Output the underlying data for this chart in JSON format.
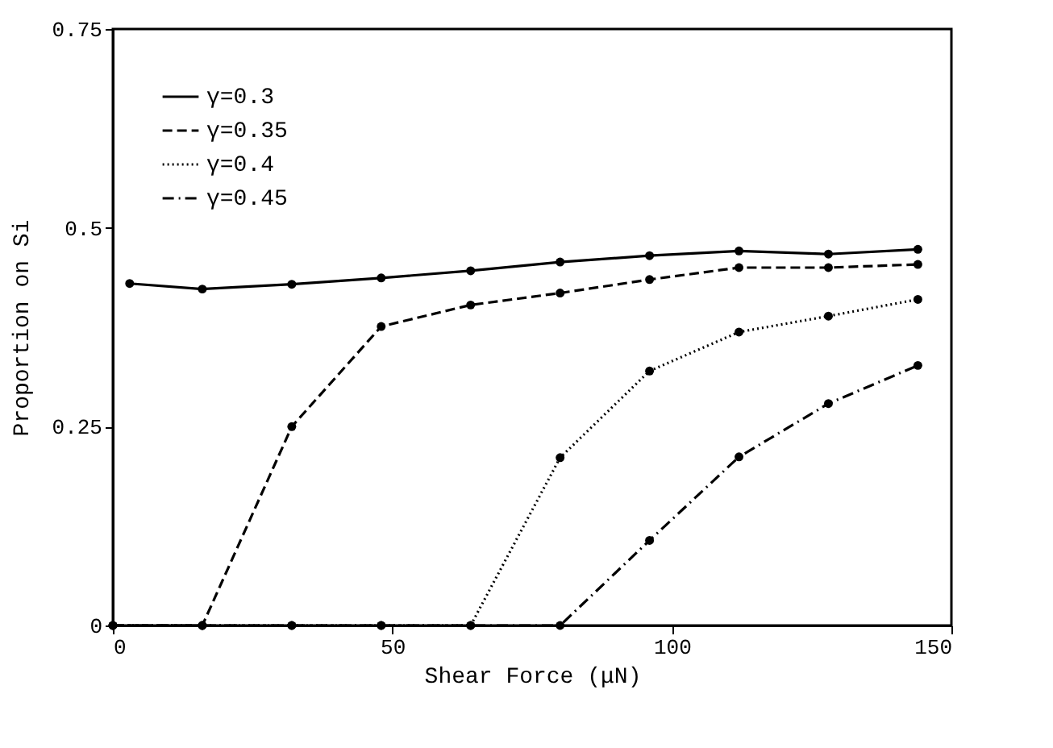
{
  "chart_data": {
    "type": "line",
    "xlabel": "Shear Force (μN)",
    "ylabel": "Proportion on Si",
    "xlim": [
      0,
      150
    ],
    "xticks": [
      0,
      50,
      100,
      150
    ],
    "ylim": [
      0,
      0.75
    ],
    "yticks": [
      0,
      0.25,
      0.5,
      0.75
    ],
    "grid": false,
    "legend": "top left",
    "marker": "circle",
    "series": [
      {
        "name": "γ=0.3",
        "color": "#000000",
        "line_style": "solid",
        "x": [
          3,
          16,
          32,
          48,
          64,
          80,
          96,
          112,
          128,
          144
        ],
        "values": [
          0.43,
          0.423,
          0.429,
          0.437,
          0.446,
          0.457,
          0.465,
          0.471,
          0.467,
          0.473
        ]
      },
      {
        "name": "γ=0.35",
        "color": "#000000",
        "line_style": "dashed",
        "x": [
          0,
          16,
          32,
          48,
          64,
          80,
          96,
          112,
          128,
          144
        ],
        "values": [
          0,
          0,
          0.25,
          0.376,
          0.403,
          0.418,
          0.435,
          0.45,
          0.45,
          0.454
        ]
      },
      {
        "name": "γ=0.4",
        "color": "#000000",
        "line_style": "dotted",
        "x": [
          0,
          16,
          32,
          48,
          64,
          80,
          96,
          112,
          128,
          144
        ],
        "values": [
          0,
          0,
          0,
          0,
          0,
          0.211,
          0.32,
          0.369,
          0.389,
          0.41
        ]
      },
      {
        "name": "γ=0.45",
        "color": "#000000",
        "line_style": "dashdot",
        "x": [
          0,
          16,
          32,
          48,
          64,
          80,
          96,
          112,
          128,
          144
        ],
        "values": [
          0,
          0,
          0,
          0,
          0,
          0,
          0.107,
          0.212,
          0.279,
          0.327
        ]
      }
    ]
  }
}
